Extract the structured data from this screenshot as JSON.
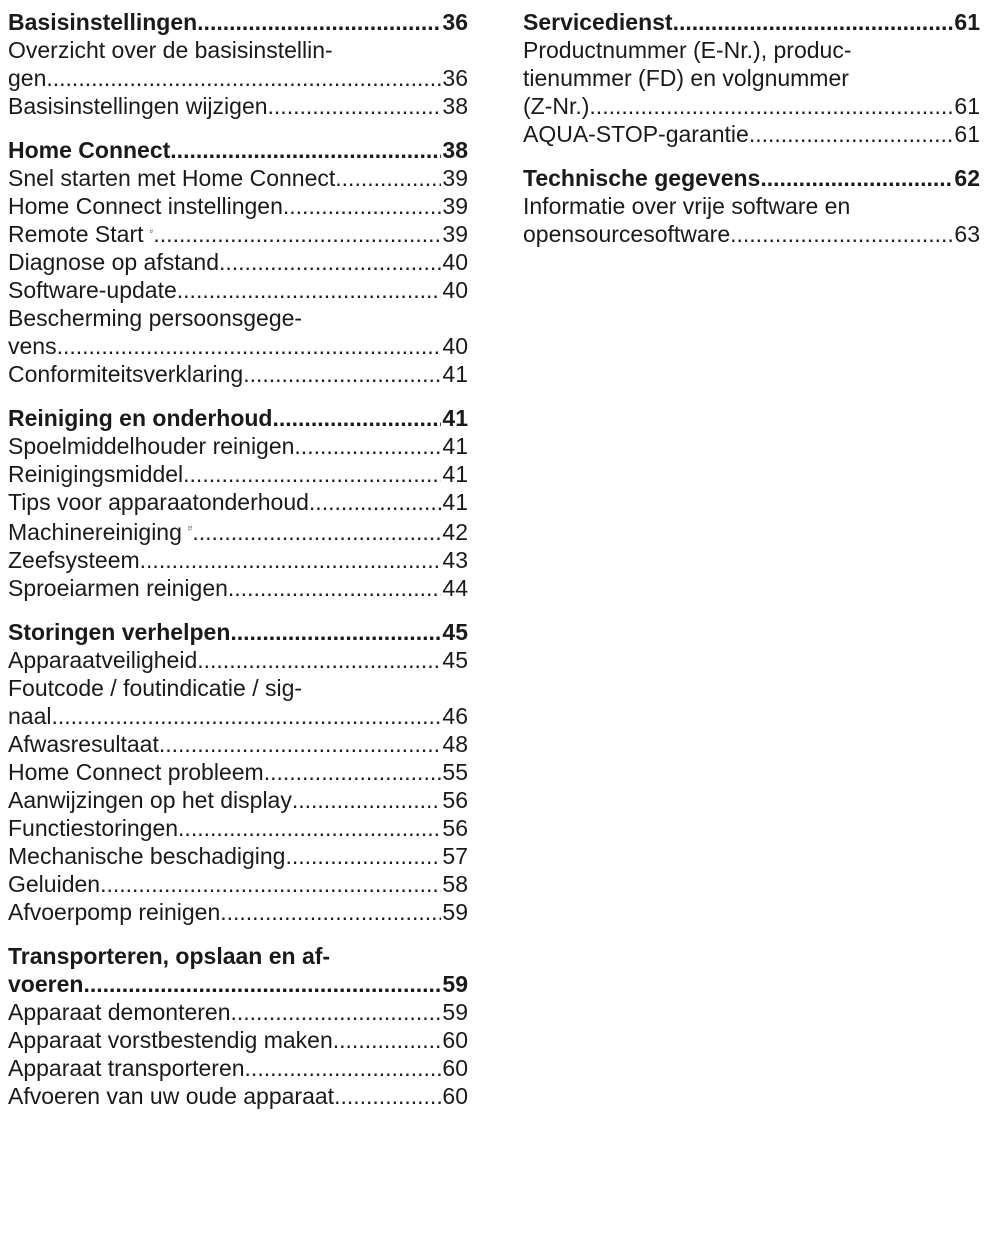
{
  "left_column": {
    "sections": [
      {
        "title": "Basisinstellingen",
        "page": "36",
        "items": [
          {
            "lines": [
              "Overzicht over de basisinstellin-",
              "gen"
            ],
            "page": "36"
          },
          {
            "lines": [
              "Basisinstellingen wijzigen"
            ],
            "page": "38"
          }
        ]
      },
      {
        "title": "Home Connect",
        "page": "38",
        "items": [
          {
            "lines": [
              "Snel starten met Home Connect"
            ],
            "page": "39"
          },
          {
            "lines": [
              "Home Connect instellingen"
            ],
            "page": "39"
          },
          {
            "lines": [
              "Remote Start"
            ],
            "page": "39",
            "icon": "remote-start-icon"
          },
          {
            "lines": [
              "Diagnose op afstand"
            ],
            "page": "40"
          },
          {
            "lines": [
              "Software-update"
            ],
            "page": "40"
          },
          {
            "lines": [
              "Bescherming persoonsgege-",
              "vens"
            ],
            "page": "40"
          },
          {
            "lines": [
              "Conformiteitsverklaring"
            ],
            "page": "41"
          }
        ]
      },
      {
        "title": "Reiniging en onderhoud",
        "page": "41",
        "items": [
          {
            "lines": [
              "Spoelmiddelhouder reinigen"
            ],
            "page": "41"
          },
          {
            "lines": [
              "Reinigingsmiddel"
            ],
            "page": "41"
          },
          {
            "lines": [
              "Tips voor apparaatonderhoud"
            ],
            "page": "41"
          },
          {
            "lines": [
              "Machinereiniging"
            ],
            "page": "42",
            "icon": "machine-care-icon"
          },
          {
            "lines": [
              "Zeefsysteem"
            ],
            "page": "43"
          },
          {
            "lines": [
              "Sproeiarmen reinigen"
            ],
            "page": "44"
          }
        ]
      },
      {
        "title": "Storingen verhelpen",
        "page": "45",
        "items": [
          {
            "lines": [
              "Apparaatveiligheid"
            ],
            "page": "45"
          },
          {
            "lines": [
              "Foutcode / foutindicatie / sig-",
              "naal"
            ],
            "page": "46"
          },
          {
            "lines": [
              "Afwasresultaat"
            ],
            "page": "48"
          },
          {
            "lines": [
              "Home Connect probleem"
            ],
            "page": "55"
          },
          {
            "lines": [
              "Aanwijzingen op het display"
            ],
            "page": "56"
          },
          {
            "lines": [
              "Functiestoringen"
            ],
            "page": "56"
          },
          {
            "lines": [
              "Mechanische beschadiging"
            ],
            "page": "57"
          },
          {
            "lines": [
              "Geluiden"
            ],
            "page": "58"
          },
          {
            "lines": [
              "Afvoerpomp reinigen"
            ],
            "page": "59"
          }
        ]
      },
      {
        "title_lines": [
          "Transporteren, opslaan en af-",
          "voeren"
        ],
        "page": "59",
        "items": [
          {
            "lines": [
              "Apparaat demonteren"
            ],
            "page": "59"
          },
          {
            "lines": [
              "Apparaat vorstbestendig maken"
            ],
            "page": "60"
          },
          {
            "lines": [
              "Apparaat transporteren"
            ],
            "page": "60"
          },
          {
            "lines": [
              "Afvoeren van uw oude apparaat"
            ],
            "page": "60"
          }
        ]
      }
    ]
  },
  "right_column": {
    "sections": [
      {
        "title": "Servicedienst",
        "page": "61",
        "items": [
          {
            "lines": [
              "Productnummer (E-Nr.), produc-",
              "tienummer (FD) en volgnummer",
              "(Z-Nr.)"
            ],
            "page": "61"
          },
          {
            "lines": [
              "AQUA-STOP-garantie"
            ],
            "page": "61"
          }
        ]
      },
      {
        "title": "Technische gegevens",
        "page": "62",
        "items": [
          {
            "lines": [
              "Informatie over vrije software en",
              "opensourcesoftware"
            ],
            "page": "63"
          }
        ]
      }
    ]
  }
}
